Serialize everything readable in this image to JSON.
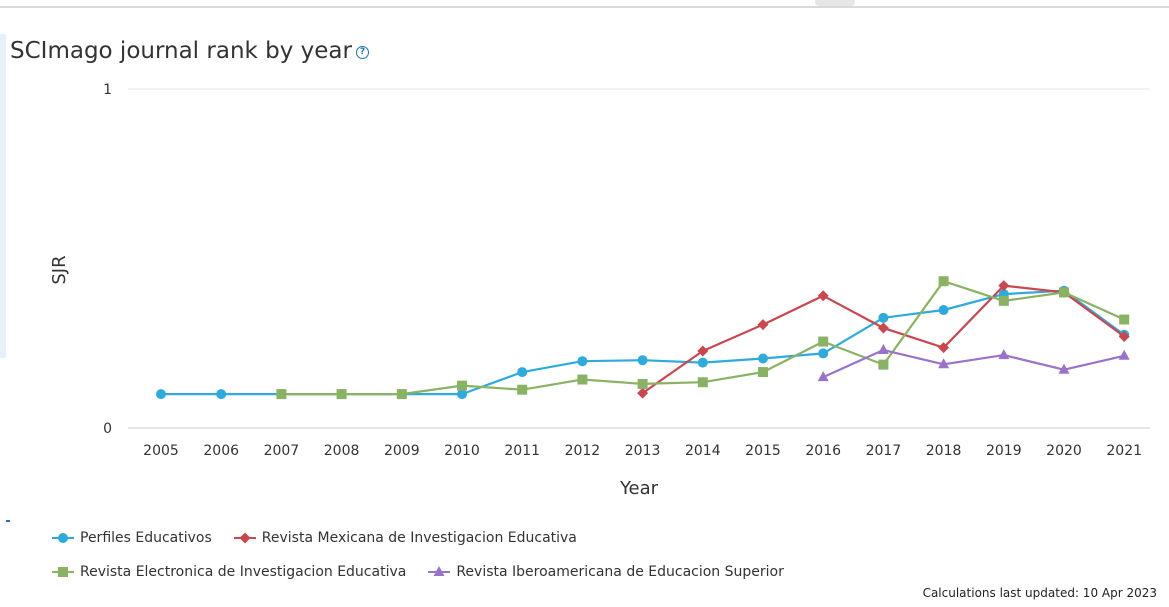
{
  "chart_title": "SCImago journal rank by year",
  "help_icon": "help-circle-icon",
  "footnote": "Calculations last updated: 10 Apr 2023",
  "chart_data": {
    "type": "line",
    "title": "SCImago journal rank by year",
    "xlabel": "Year",
    "ylabel": "SJR",
    "ylim": [
      0,
      1
    ],
    "yticks": [
      "0",
      "1"
    ],
    "grid": true,
    "legend_position": "bottom",
    "categories": [
      "2005",
      "2006",
      "2007",
      "2008",
      "2009",
      "2010",
      "2011",
      "2012",
      "2013",
      "2014",
      "2015",
      "2016",
      "2017",
      "2018",
      "2019",
      "2020",
      "2021"
    ],
    "series": [
      {
        "name": "Perfiles Educativos",
        "color": "#2eaadc",
        "marker": "circle",
        "values": [
          0.1,
          0.1,
          0.1,
          0.1,
          0.1,
          0.1,
          0.165,
          0.197,
          0.2,
          0.193,
          0.205,
          0.22,
          0.325,
          0.348,
          0.395,
          0.405,
          0.275
        ]
      },
      {
        "name": "Revista Mexicana de Investigacion Educativa",
        "color": "#c8484f",
        "marker": "diamond",
        "values": [
          null,
          null,
          null,
          null,
          null,
          null,
          null,
          null,
          0.103,
          0.227,
          0.305,
          0.39,
          0.295,
          0.237,
          0.42,
          0.4,
          0.27
        ]
      },
      {
        "name": "Revista Electronica de Investigacion Educativa",
        "color": "#8ab264",
        "marker": "square",
        "values": [
          null,
          null,
          0.1,
          0.1,
          0.1,
          0.125,
          0.113,
          0.143,
          0.13,
          0.135,
          0.165,
          0.255,
          0.187,
          0.433,
          0.375,
          0.4,
          0.32
        ]
      },
      {
        "name": "Revista Iberoamericana de Educacion Superior",
        "color": "#9a73c9",
        "marker": "triangle",
        "values": [
          null,
          null,
          null,
          null,
          null,
          null,
          null,
          null,
          null,
          null,
          null,
          0.15,
          0.23,
          0.188,
          0.215,
          0.172,
          0.213
        ]
      }
    ]
  }
}
